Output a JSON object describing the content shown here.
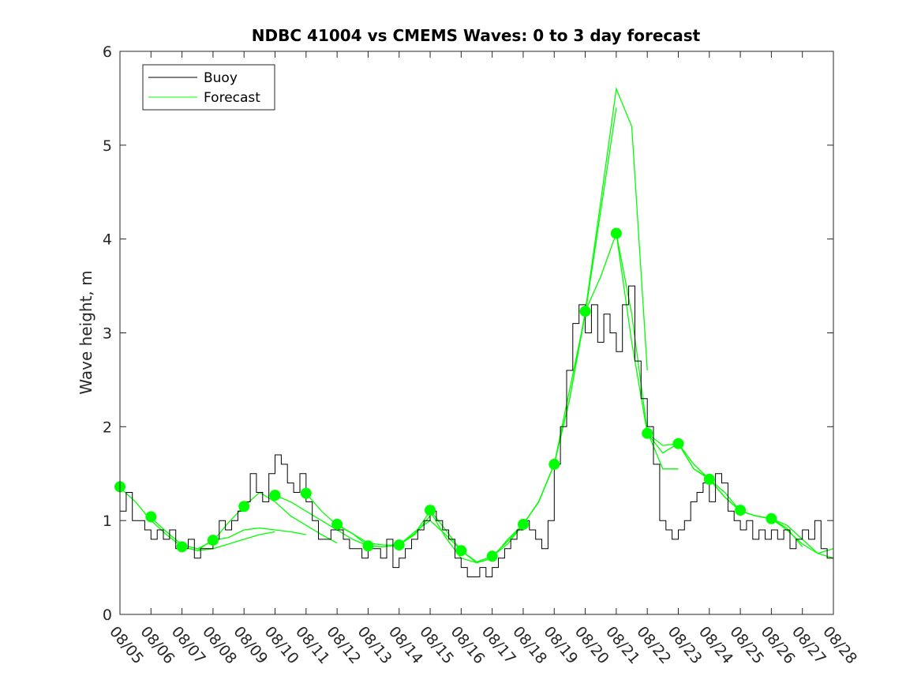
{
  "chart_data": {
    "type": "line",
    "title": "NDBC 41004 vs CMEMS Waves: 0 to 3 day forecast",
    "xlabel": "",
    "ylabel": "Wave height, m",
    "xlim": [
      "08/05",
      "08/28"
    ],
    "ylim": [
      0,
      6
    ],
    "x_tick_labels": [
      "08/05",
      "08/06",
      "08/07",
      "08/08",
      "08/09",
      "08/10",
      "08/11",
      "08/12",
      "08/13",
      "08/14",
      "08/15",
      "08/16",
      "08/17",
      "08/18",
      "08/19",
      "08/20",
      "08/21",
      "08/22",
      "08/23",
      "08/24",
      "08/25",
      "08/26",
      "08/27",
      "08/28"
    ],
    "y_ticks": [
      0,
      1,
      2,
      3,
      4,
      5,
      6
    ],
    "grid": false,
    "legend": {
      "placement": "top-left",
      "entries": [
        {
          "label": "Buoy",
          "color": "#000000"
        },
        {
          "label": "Forecast",
          "color": "#00ff00"
        }
      ]
    },
    "colors": {
      "buoy": "#000000",
      "forecast": "#00ff00",
      "axis": "#262626"
    },
    "buoy": {
      "x": [
        5.0,
        5.2,
        5.4,
        5.6,
        5.8,
        6.0,
        6.2,
        6.4,
        6.6,
        6.8,
        7.0,
        7.2,
        7.4,
        7.6,
        7.8,
        8.0,
        8.2,
        8.4,
        8.6,
        8.8,
        9.0,
        9.2,
        9.4,
        9.6,
        9.8,
        10.0,
        10.2,
        10.4,
        10.6,
        10.8,
        11.0,
        11.2,
        11.4,
        11.6,
        11.8,
        12.0,
        12.2,
        12.4,
        12.6,
        12.8,
        13.0,
        13.2,
        13.4,
        13.6,
        13.8,
        14.0,
        14.2,
        14.4,
        14.6,
        14.8,
        15.0,
        15.2,
        15.4,
        15.6,
        15.8,
        16.0,
        16.2,
        16.4,
        16.6,
        16.8,
        17.0,
        17.2,
        17.4,
        17.6,
        17.8,
        18.0,
        18.2,
        18.4,
        18.6,
        18.8,
        19.0,
        19.2,
        19.4,
        19.6,
        19.8,
        20.0,
        20.2,
        20.4,
        20.6,
        20.8,
        21.0,
        21.2,
        21.4,
        21.6,
        21.8,
        22.0,
        22.2,
        22.4,
        22.6,
        22.8,
        23.0,
        23.2,
        23.4,
        23.6,
        23.8,
        24.0,
        24.2,
        24.4,
        24.6,
        24.8,
        25.0,
        25.2,
        25.4,
        25.6,
        25.8,
        26.0,
        26.2,
        26.4,
        26.6,
        26.8,
        27.0,
        27.2,
        27.4,
        27.6,
        27.8,
        28.0
      ],
      "y": [
        1.1,
        1.3,
        1.0,
        1.0,
        0.9,
        0.8,
        0.9,
        0.8,
        0.9,
        0.7,
        0.7,
        0.8,
        0.6,
        0.7,
        0.7,
        0.8,
        1.0,
        0.9,
        1.0,
        1.1,
        1.2,
        1.5,
        1.3,
        1.2,
        1.5,
        1.7,
        1.6,
        1.4,
        1.3,
        1.5,
        1.2,
        1.0,
        0.8,
        0.8,
        0.9,
        0.9,
        0.8,
        0.7,
        0.7,
        0.6,
        0.7,
        0.7,
        0.6,
        0.8,
        0.5,
        0.6,
        0.7,
        0.8,
        0.9,
        1.0,
        1.1,
        1.0,
        0.9,
        0.8,
        0.6,
        0.5,
        0.4,
        0.4,
        0.5,
        0.4,
        0.5,
        0.6,
        0.7,
        0.8,
        0.9,
        1.0,
        0.9,
        0.8,
        0.7,
        1.0,
        1.6,
        2.0,
        2.6,
        3.1,
        3.3,
        3.0,
        3.3,
        2.9,
        3.2,
        3.0,
        2.8,
        3.3,
        3.5,
        2.7,
        2.3,
        2.0,
        1.6,
        1.0,
        0.9,
        0.8,
        0.9,
        1.0,
        1.2,
        1.3,
        1.4,
        1.2,
        1.5,
        1.4,
        1.1,
        1.0,
        0.9,
        1.0,
        0.8,
        0.9,
        0.8,
        0.9,
        0.8,
        0.9,
        0.7,
        0.8,
        0.9,
        0.8,
        1.0,
        0.7,
        0.6,
        0.6
      ]
    },
    "forecast_series": [
      {
        "x": [
          5.0,
          5.5,
          6.0,
          6.5,
          7.0,
          7.5,
          8.0
        ],
        "y": [
          1.35,
          1.2,
          1.0,
          0.85,
          0.72,
          0.68,
          0.8
        ]
      },
      {
        "x": [
          6.0,
          6.5,
          7.0,
          7.5,
          8.0,
          8.5,
          9.0
        ],
        "y": [
          1.03,
          0.88,
          0.74,
          0.7,
          0.78,
          0.98,
          1.15
        ]
      },
      {
        "x": [
          7.0,
          7.5,
          8.0,
          8.5,
          9.0,
          9.5,
          10.0
        ],
        "y": [
          0.72,
          0.68,
          0.7,
          0.75,
          0.8,
          0.85,
          0.88
        ]
      },
      {
        "x": [
          8.0,
          8.5,
          9.0,
          9.5,
          10.0,
          10.5,
          11.0
        ],
        "y": [
          0.79,
          0.82,
          0.9,
          0.92,
          0.9,
          0.88,
          0.85
        ]
      },
      {
        "x": [
          9.0,
          9.5,
          10.0,
          10.5,
          11.0,
          11.5,
          12.0
        ],
        "y": [
          1.15,
          1.3,
          1.2,
          1.05,
          0.95,
          0.85,
          0.76
        ]
      },
      {
        "x": [
          10.0,
          10.5,
          11.0,
          11.5,
          12.0,
          12.5,
          13.0
        ],
        "y": [
          1.27,
          1.2,
          1.1,
          1.0,
          0.9,
          0.8,
          0.73
        ]
      },
      {
        "x": [
          11.0,
          11.5,
          12.0,
          12.5,
          13.0,
          13.5,
          14.0
        ],
        "y": [
          1.29,
          1.1,
          0.95,
          0.86,
          0.76,
          0.74,
          0.74
        ]
      },
      {
        "x": [
          12.0,
          12.5,
          13.0,
          13.5,
          14.0,
          14.5,
          15.0
        ],
        "y": [
          0.96,
          0.86,
          0.73,
          0.72,
          0.74,
          0.85,
          1.05
        ]
      },
      {
        "x": [
          13.0,
          13.5,
          14.0,
          14.5,
          15.0,
          15.5,
          16.0
        ],
        "y": [
          0.73,
          0.72,
          0.74,
          0.88,
          1.0,
          0.85,
          0.68
        ]
      },
      {
        "x": [
          14.0,
          14.5,
          15.0,
          15.5,
          16.0,
          16.5,
          17.0
        ],
        "y": [
          0.74,
          0.86,
          1.1,
          0.82,
          0.6,
          0.55,
          0.6
        ]
      },
      {
        "x": [
          15.0,
          15.5,
          16.0,
          16.5,
          17.0,
          17.5,
          18.0
        ],
        "y": [
          1.11,
          0.9,
          0.68,
          0.55,
          0.6,
          0.8,
          0.96
        ]
      },
      {
        "x": [
          16.0,
          16.5,
          17.0,
          17.5,
          18.0,
          18.5,
          19.0
        ],
        "y": [
          0.68,
          0.56,
          0.62,
          0.78,
          0.96,
          1.2,
          1.6
        ]
      },
      {
        "x": [
          17.0,
          17.5,
          18.0,
          18.5,
          19.0,
          19.5,
          20.0
        ],
        "y": [
          0.62,
          0.75,
          0.96,
          1.2,
          1.6,
          2.4,
          3.2
        ]
      },
      {
        "x": [
          18.0,
          18.5,
          19.0,
          19.5,
          20.0,
          20.5,
          21.0
        ],
        "y": [
          0.96,
          1.2,
          1.6,
          2.3,
          3.2,
          4.3,
          5.4
        ]
      },
      {
        "x": [
          19.0,
          19.5,
          20.0,
          20.5,
          21.0,
          21.5,
          22.0
        ],
        "y": [
          1.6,
          2.3,
          3.23,
          4.4,
          5.6,
          5.2,
          2.6
        ]
      },
      {
        "x": [
          20.0,
          20.5,
          21.0,
          21.5,
          22.0,
          22.5,
          23.0
        ],
        "y": [
          3.23,
          3.6,
          4.06,
          3.2,
          1.95,
          1.55,
          1.55
        ]
      },
      {
        "x": [
          21.0,
          21.5,
          22.0,
          22.5,
          23.0,
          23.5,
          24.0
        ],
        "y": [
          4.06,
          2.9,
          1.93,
          1.72,
          1.82,
          1.55,
          1.45
        ]
      },
      {
        "x": [
          22.0,
          22.5,
          23.0,
          23.5,
          24.0,
          24.5,
          25.0
        ],
        "y": [
          1.93,
          1.8,
          1.82,
          1.55,
          1.44,
          1.25,
          1.1
        ]
      },
      {
        "x": [
          23.0,
          23.5,
          24.0,
          24.5,
          25.0,
          25.5,
          26.0
        ],
        "y": [
          1.82,
          1.6,
          1.44,
          1.3,
          1.1,
          1.05,
          1.02
        ]
      },
      {
        "x": [
          24.0,
          24.5,
          25.0,
          25.5,
          26.0,
          26.5,
          27.0
        ],
        "y": [
          1.44,
          1.25,
          1.1,
          1.05,
          1.02,
          0.92,
          0.72
        ]
      },
      {
        "x": [
          25.0,
          25.5,
          26.0,
          26.5,
          27.0,
          27.5,
          28.0
        ],
        "y": [
          1.1,
          1.05,
          1.02,
          0.9,
          0.75,
          0.65,
          0.6
        ]
      },
      {
        "x": [
          26.0,
          26.5,
          27.0,
          27.5,
          28.0
        ],
        "y": [
          1.02,
          0.95,
          0.8,
          0.65,
          0.7
        ]
      }
    ],
    "forecast_points": {
      "x": [
        5,
        6,
        7,
        8,
        9,
        10,
        11,
        12,
        13,
        14,
        15,
        16,
        17,
        18,
        19,
        20,
        21,
        22,
        23,
        24,
        25,
        26
      ],
      "y": [
        1.36,
        1.04,
        0.72,
        0.79,
        1.15,
        1.27,
        1.29,
        0.96,
        0.73,
        0.74,
        1.11,
        0.68,
        0.62,
        0.96,
        1.6,
        3.23,
        4.06,
        1.93,
        1.82,
        1.44,
        1.11,
        1.02
      ]
    }
  }
}
